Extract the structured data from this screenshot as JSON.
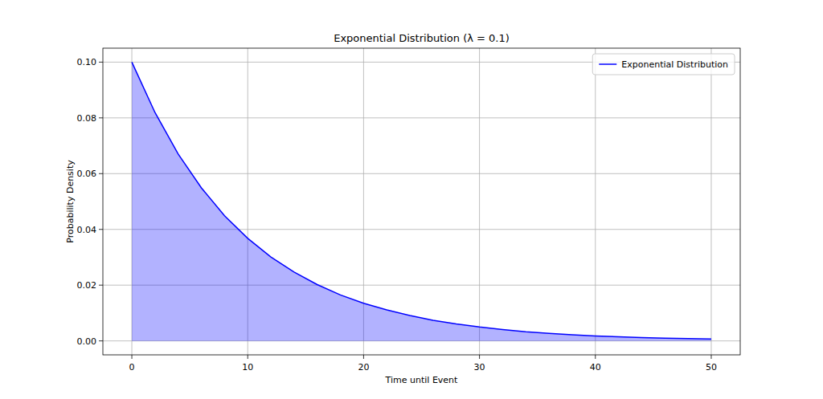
{
  "chart_data": {
    "type": "area",
    "title": "Exponential Distribution (λ = 0.1)",
    "x_label": "Time until Event",
    "y_label": "Probability Density",
    "x": [
      0,
      2,
      4,
      6,
      8,
      10,
      12,
      14,
      16,
      18,
      20,
      22,
      24,
      26,
      28,
      30,
      32,
      34,
      36,
      38,
      40,
      42,
      44,
      46,
      48,
      50
    ],
    "series": [
      {
        "name": "Exponential Distribution",
        "color": "#0000ff",
        "values": [
          0.1,
          0.0819,
          0.067,
          0.0549,
          0.0449,
          0.0368,
          0.0301,
          0.0247,
          0.0202,
          0.0165,
          0.0135,
          0.0111,
          0.0091,
          0.0074,
          0.0061,
          0.005,
          0.0041,
          0.0033,
          0.0027,
          0.0022,
          0.0018,
          0.0015,
          0.0012,
          0.001,
          0.0008,
          0.0007
        ]
      }
    ],
    "xlim": [
      -2.5,
      52.5
    ],
    "ylim": [
      -0.005,
      0.105
    ],
    "xticks": [
      0,
      10,
      20,
      30,
      40,
      50
    ],
    "yticks": [
      {
        "value": 0,
        "label": "0.00"
      },
      {
        "value": 0.02,
        "label": "0.02"
      },
      {
        "value": 0.04,
        "label": "0.04"
      },
      {
        "value": 0.06,
        "label": "0.06"
      },
      {
        "value": 0.08,
        "label": "0.08"
      },
      {
        "value": 0.1,
        "label": "0.10"
      }
    ],
    "grid": true,
    "legend": "upper right"
  }
}
